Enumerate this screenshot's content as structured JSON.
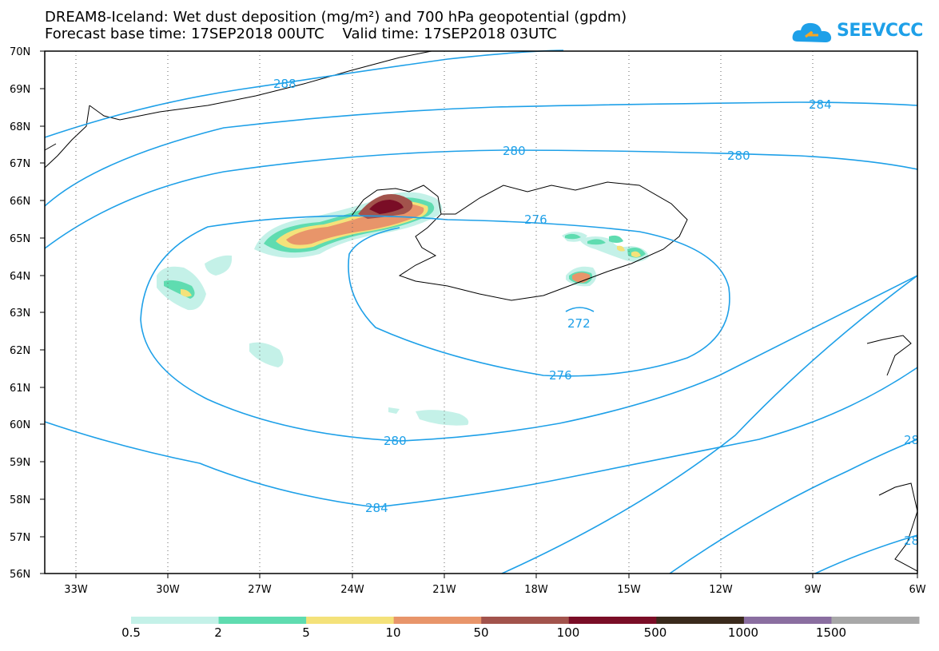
{
  "title_line1": "DREAM8-Iceland: Wet dust deposition (mg/m²) and 700 hPa geopotential (gpdm)",
  "title_line2": "Forecast base time: 17SEP2018 00UTC    Valid time: 17SEP2018 03UTC",
  "logo_text": "SEEVCCC",
  "lat_labels": [
    "70N",
    "69N",
    "68N",
    "67N",
    "66N",
    "65N",
    "64N",
    "63N",
    "62N",
    "61N",
    "60N",
    "59N",
    "58N",
    "57N",
    "56N"
  ],
  "lon_labels": [
    "33W",
    "30W",
    "27W",
    "24W",
    "21W",
    "18W",
    "15W",
    "12W",
    "9W",
    "6W"
  ],
  "contour_labels": [
    "288",
    "284",
    "280",
    "280",
    "276",
    "272",
    "276",
    "280",
    "284",
    "28",
    "28"
  ],
  "colorbar": {
    "labels": [
      "0.5",
      "2",
      "5",
      "10",
      "50",
      "100",
      "500",
      "1000",
      "1500"
    ],
    "colors": [
      "#c4f1e8",
      "#5fdcb0",
      "#f4e27a",
      "#e8956a",
      "#a2534c",
      "#7a0d26",
      "#3a2a1c",
      "#8a6ea0",
      "#a8a8a8"
    ]
  }
}
